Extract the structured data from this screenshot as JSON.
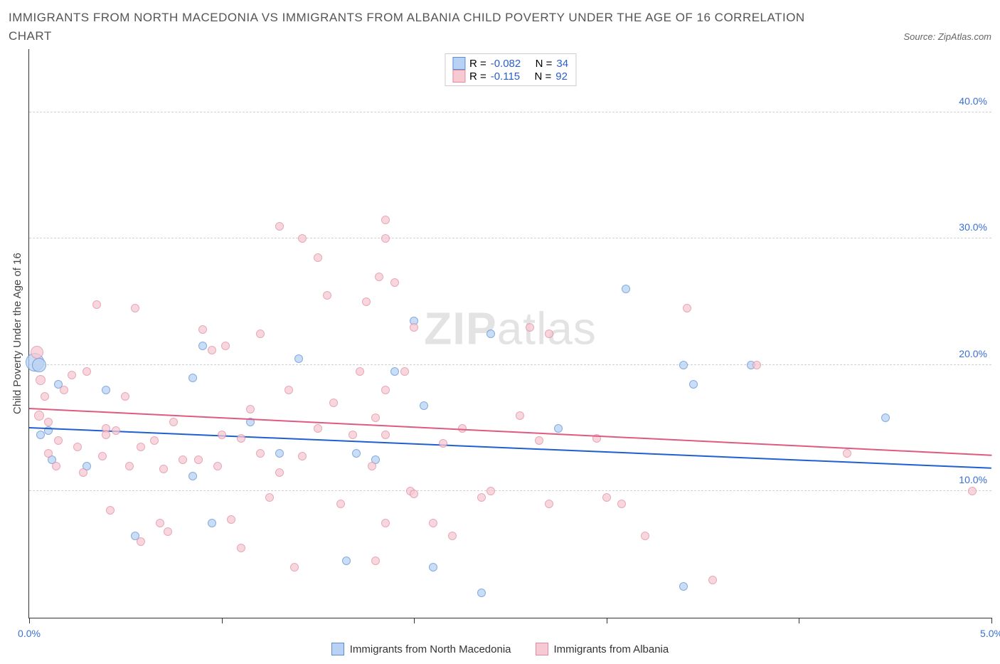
{
  "title": "IMMIGRANTS FROM NORTH MACEDONIA VS IMMIGRANTS FROM ALBANIA CHILD POVERTY UNDER THE AGE OF 16 CORRELATION CHART",
  "source": "Source: ZipAtlas.com",
  "ylabel": "Child Poverty Under the Age of 16",
  "watermark_bold": "ZIP",
  "watermark_light": "atlas",
  "chart": {
    "type": "scatter",
    "xlim": [
      0,
      5
    ],
    "ylim": [
      0,
      45
    ],
    "x_ticks": [
      0,
      1,
      2,
      3,
      4,
      5
    ],
    "x_tick_labels": {
      "0": "0.0%",
      "5": "5.0%"
    },
    "y_grid": [
      10,
      20,
      30,
      40
    ],
    "y_tick_labels": {
      "10": "10.0%",
      "20": "20.0%",
      "30": "30.0%",
      "40": "40.0%"
    },
    "background_color": "#ffffff",
    "grid_color": "#d0d0d0",
    "axis_color": "#333333",
    "tick_label_color": "#3a6fd8"
  },
  "series": [
    {
      "key": "macedonia",
      "label": "Immigrants from North Macedonia",
      "fill": "#b9d2f3",
      "stroke": "#5a8fd8",
      "trend_color": "#1f5fd0",
      "R": "-0.082",
      "N": "34",
      "trend": {
        "y_at_x0": 15.0,
        "y_at_xmax": 11.8
      },
      "points": [
        {
          "x": 0.03,
          "y": 20.2,
          "r": 13
        },
        {
          "x": 0.05,
          "y": 20.0,
          "r": 10
        },
        {
          "x": 0.06,
          "y": 14.5,
          "r": 6
        },
        {
          "x": 0.1,
          "y": 14.8,
          "r": 6
        },
        {
          "x": 0.12,
          "y": 12.5,
          "r": 6
        },
        {
          "x": 0.15,
          "y": 18.5,
          "r": 6
        },
        {
          "x": 0.3,
          "y": 12.0,
          "r": 6
        },
        {
          "x": 0.4,
          "y": 18.0,
          "r": 6
        },
        {
          "x": 0.55,
          "y": 6.5,
          "r": 6
        },
        {
          "x": 0.85,
          "y": 11.2,
          "r": 6
        },
        {
          "x": 0.85,
          "y": 19.0,
          "r": 6
        },
        {
          "x": 0.9,
          "y": 21.5,
          "r": 6
        },
        {
          "x": 0.95,
          "y": 7.5,
          "r": 6
        },
        {
          "x": 1.15,
          "y": 15.5,
          "r": 6
        },
        {
          "x": 1.3,
          "y": 13.0,
          "r": 6
        },
        {
          "x": 1.4,
          "y": 20.5,
          "r": 6
        },
        {
          "x": 1.65,
          "y": 4.5,
          "r": 6
        },
        {
          "x": 1.7,
          "y": 13.0,
          "r": 6
        },
        {
          "x": 1.8,
          "y": 12.5,
          "r": 6
        },
        {
          "x": 1.9,
          "y": 19.5,
          "r": 6
        },
        {
          "x": 2.0,
          "y": 23.5,
          "r": 6
        },
        {
          "x": 2.05,
          "y": 16.8,
          "r": 6
        },
        {
          "x": 2.1,
          "y": 4.0,
          "r": 6
        },
        {
          "x": 2.35,
          "y": 2.0,
          "r": 6
        },
        {
          "x": 2.4,
          "y": 22.5,
          "r": 6
        },
        {
          "x": 2.75,
          "y": 15.0,
          "r": 6
        },
        {
          "x": 3.1,
          "y": 26.0,
          "r": 6
        },
        {
          "x": 3.4,
          "y": 2.5,
          "r": 6
        },
        {
          "x": 3.4,
          "y": 20.0,
          "r": 6
        },
        {
          "x": 3.45,
          "y": 18.5,
          "r": 6
        },
        {
          "x": 3.75,
          "y": 20.0,
          "r": 6
        },
        {
          "x": 4.45,
          "y": 15.8,
          "r": 6
        }
      ]
    },
    {
      "key": "albania",
      "label": "Immigrants from Albania",
      "fill": "#f6c9d3",
      "stroke": "#e38aa0",
      "trend_color": "#e05a80",
      "R": "-0.115",
      "N": "92",
      "trend": {
        "y_at_x0": 16.5,
        "y_at_xmax": 12.8
      },
      "points": [
        {
          "x": 0.04,
          "y": 21.0,
          "r": 9
        },
        {
          "x": 0.05,
          "y": 16.0,
          "r": 7
        },
        {
          "x": 0.06,
          "y": 18.8,
          "r": 7
        },
        {
          "x": 0.08,
          "y": 17.5,
          "r": 6
        },
        {
          "x": 0.1,
          "y": 15.5,
          "r": 6
        },
        {
          "x": 0.1,
          "y": 13.0,
          "r": 6
        },
        {
          "x": 0.14,
          "y": 12.0,
          "r": 6
        },
        {
          "x": 0.15,
          "y": 14.0,
          "r": 6
        },
        {
          "x": 0.18,
          "y": 18.0,
          "r": 6
        },
        {
          "x": 0.22,
          "y": 19.2,
          "r": 6
        },
        {
          "x": 0.25,
          "y": 13.5,
          "r": 6
        },
        {
          "x": 0.28,
          "y": 11.5,
          "r": 6
        },
        {
          "x": 0.3,
          "y": 19.5,
          "r": 6
        },
        {
          "x": 0.35,
          "y": 24.8,
          "r": 6
        },
        {
          "x": 0.38,
          "y": 12.8,
          "r": 6
        },
        {
          "x": 0.4,
          "y": 15.0,
          "r": 6
        },
        {
          "x": 0.4,
          "y": 14.5,
          "r": 6
        },
        {
          "x": 0.42,
          "y": 8.5,
          "r": 6
        },
        {
          "x": 0.45,
          "y": 14.8,
          "r": 6
        },
        {
          "x": 0.5,
          "y": 17.5,
          "r": 6
        },
        {
          "x": 0.52,
          "y": 12.0,
          "r": 6
        },
        {
          "x": 0.55,
          "y": 24.5,
          "r": 6
        },
        {
          "x": 0.58,
          "y": 13.5,
          "r": 6
        },
        {
          "x": 0.58,
          "y": 6.0,
          "r": 6
        },
        {
          "x": 0.65,
          "y": 14.0,
          "r": 6
        },
        {
          "x": 0.68,
          "y": 7.5,
          "r": 6
        },
        {
          "x": 0.7,
          "y": 11.8,
          "r": 6
        },
        {
          "x": 0.72,
          "y": 6.8,
          "r": 6
        },
        {
          "x": 0.75,
          "y": 15.5,
          "r": 6
        },
        {
          "x": 0.8,
          "y": 12.5,
          "r": 6
        },
        {
          "x": 0.88,
          "y": 12.5,
          "r": 6
        },
        {
          "x": 0.9,
          "y": 22.8,
          "r": 6
        },
        {
          "x": 0.95,
          "y": 21.2,
          "r": 6
        },
        {
          "x": 0.98,
          "y": 12.0,
          "r": 6
        },
        {
          "x": 1.0,
          "y": 14.5,
          "r": 6
        },
        {
          "x": 1.02,
          "y": 21.5,
          "r": 6
        },
        {
          "x": 1.05,
          "y": 7.8,
          "r": 6
        },
        {
          "x": 1.1,
          "y": 14.2,
          "r": 6
        },
        {
          "x": 1.1,
          "y": 5.5,
          "r": 6
        },
        {
          "x": 1.15,
          "y": 16.5,
          "r": 6
        },
        {
          "x": 1.2,
          "y": 13.0,
          "r": 6
        },
        {
          "x": 1.2,
          "y": 22.5,
          "r": 6
        },
        {
          "x": 1.25,
          "y": 9.5,
          "r": 6
        },
        {
          "x": 1.3,
          "y": 31.0,
          "r": 6
        },
        {
          "x": 1.3,
          "y": 11.5,
          "r": 6
        },
        {
          "x": 1.35,
          "y": 18.0,
          "r": 6
        },
        {
          "x": 1.38,
          "y": 4.0,
          "r": 6
        },
        {
          "x": 1.42,
          "y": 30.0,
          "r": 6
        },
        {
          "x": 1.42,
          "y": 12.8,
          "r": 6
        },
        {
          "x": 1.5,
          "y": 28.5,
          "r": 6
        },
        {
          "x": 1.5,
          "y": 15.0,
          "r": 6
        },
        {
          "x": 1.55,
          "y": 25.5,
          "r": 6
        },
        {
          "x": 1.58,
          "y": 17.0,
          "r": 6
        },
        {
          "x": 1.62,
          "y": 9.0,
          "r": 6
        },
        {
          "x": 1.68,
          "y": 14.5,
          "r": 6
        },
        {
          "x": 1.72,
          "y": 19.5,
          "r": 6
        },
        {
          "x": 1.75,
          "y": 25.0,
          "r": 6
        },
        {
          "x": 1.78,
          "y": 12.0,
          "r": 6
        },
        {
          "x": 1.8,
          "y": 15.8,
          "r": 6
        },
        {
          "x": 1.8,
          "y": 4.5,
          "r": 6
        },
        {
          "x": 1.82,
          "y": 27.0,
          "r": 6
        },
        {
          "x": 1.85,
          "y": 14.5,
          "r": 6
        },
        {
          "x": 1.85,
          "y": 18.0,
          "r": 6
        },
        {
          "x": 1.85,
          "y": 31.5,
          "r": 6
        },
        {
          "x": 1.85,
          "y": 7.5,
          "r": 6
        },
        {
          "x": 1.85,
          "y": 30.0,
          "r": 6
        },
        {
          "x": 1.9,
          "y": 26.5,
          "r": 6
        },
        {
          "x": 1.95,
          "y": 19.5,
          "r": 6
        },
        {
          "x": 1.98,
          "y": 10.0,
          "r": 6
        },
        {
          "x": 2.0,
          "y": 23.0,
          "r": 6
        },
        {
          "x": 2.0,
          "y": 9.8,
          "r": 6
        },
        {
          "x": 2.1,
          "y": 7.5,
          "r": 6
        },
        {
          "x": 2.15,
          "y": 13.8,
          "r": 6
        },
        {
          "x": 2.2,
          "y": 6.5,
          "r": 6
        },
        {
          "x": 2.25,
          "y": 15.0,
          "r": 6
        },
        {
          "x": 2.35,
          "y": 9.5,
          "r": 6
        },
        {
          "x": 2.4,
          "y": 10.0,
          "r": 6
        },
        {
          "x": 2.55,
          "y": 16.0,
          "r": 6
        },
        {
          "x": 2.6,
          "y": 23.0,
          "r": 6
        },
        {
          "x": 2.65,
          "y": 14.0,
          "r": 6
        },
        {
          "x": 2.7,
          "y": 9.0,
          "r": 6
        },
        {
          "x": 2.7,
          "y": 22.5,
          "r": 6
        },
        {
          "x": 2.95,
          "y": 14.2,
          "r": 6
        },
        {
          "x": 3.0,
          "y": 9.5,
          "r": 6
        },
        {
          "x": 3.08,
          "y": 9.0,
          "r": 6
        },
        {
          "x": 3.2,
          "y": 6.5,
          "r": 6
        },
        {
          "x": 3.42,
          "y": 24.5,
          "r": 6
        },
        {
          "x": 3.55,
          "y": 3.0,
          "r": 6
        },
        {
          "x": 3.78,
          "y": 20.0,
          "r": 6
        },
        {
          "x": 4.25,
          "y": 13.0,
          "r": 6
        },
        {
          "x": 4.9,
          "y": 10.0,
          "r": 6
        }
      ]
    }
  ],
  "legend_stats_labels": {
    "R": "R =",
    "N": "N ="
  }
}
